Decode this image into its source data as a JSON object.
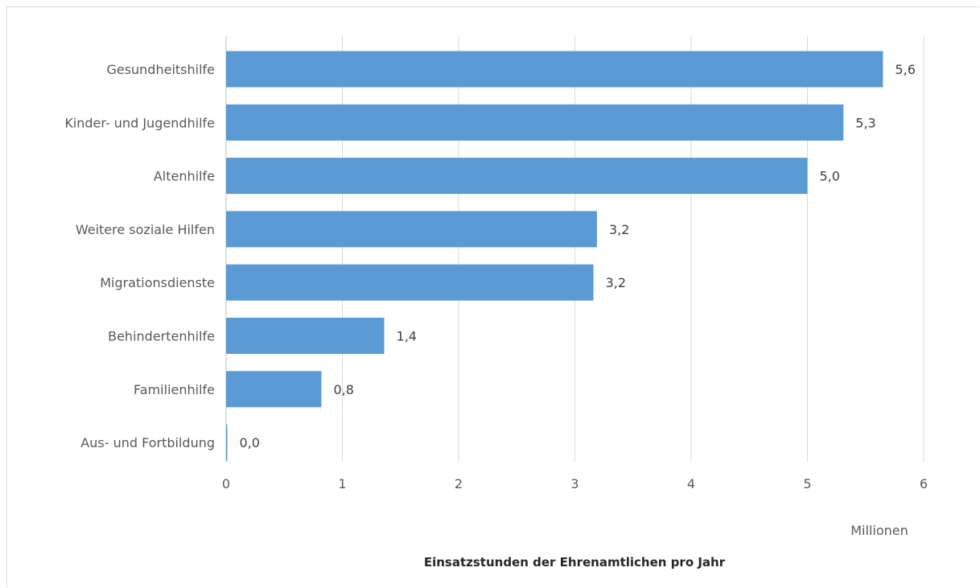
{
  "chart_data": {
    "type": "bar",
    "orientation": "horizontal",
    "categories": [
      "Gesundheitshilfe",
      "Kinder- und Jugendhilfe",
      "Altenhilfe",
      "Weitere soziale Hilfen",
      "Migrationsdienste",
      "Behindertenhilfe",
      "Familienhilfe",
      "Aus- und Fortbildung"
    ],
    "values": [
      5.65,
      5.31,
      5.0,
      3.19,
      3.16,
      1.36,
      0.82,
      0.01
    ],
    "data_labels": [
      "5,6",
      "5,3",
      "5,0",
      "3,2",
      "3,2",
      "1,4",
      "0,8",
      "0,0"
    ],
    "title": "",
    "xlabel": "Einsatzstunden der Ehrenamtlichen pro Jahr",
    "x_unit_label": "Millionen",
    "ylabel": "",
    "xlim": [
      0,
      6
    ],
    "x_ticks": [
      "0",
      "1",
      "2",
      "3",
      "4",
      "5",
      "6"
    ],
    "grid": "vertical",
    "legend": "none",
    "bar_color": "#5b9bd5"
  }
}
